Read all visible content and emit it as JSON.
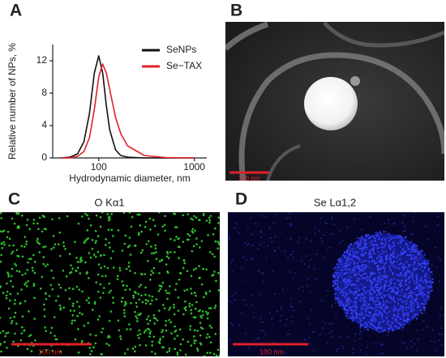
{
  "chart_data": {
    "type": "line",
    "log_x": true,
    "x_label": "Hydrodynamic diameter, nm",
    "y_label": "Relative number of NPs, %",
    "x": [
      40,
      50,
      60,
      70,
      80,
      90,
      100,
      110,
      120,
      130,
      150,
      170,
      200,
      300,
      500,
      1000
    ],
    "series": [
      {
        "name": "SeNPs",
        "color": "#111111",
        "values": [
          0,
          0.1,
          0.5,
          2,
          5.5,
          10.5,
          12.6,
          10.5,
          6.5,
          3.5,
          1,
          0.3,
          0.1,
          0,
          0,
          0
        ]
      },
      {
        "name": "Se−TAX",
        "color": "#e0202a",
        "values": [
          0,
          0,
          0.2,
          0.8,
          2.5,
          6,
          10,
          11.6,
          10.5,
          8.5,
          5,
          3,
          1.5,
          0.3,
          0.05,
          0
        ]
      }
    ],
    "xlim": [
      33,
      1350
    ],
    "xticks": [
      100,
      1000
    ],
    "ylim": [
      0,
      14
    ],
    "yticks": [
      0,
      4,
      8,
      12
    ],
    "legend": "upper right"
  },
  "panels": [
    {
      "label": "A"
    },
    {
      "label": "B",
      "scale_bar": "100 nm"
    },
    {
      "label": "C",
      "title": "O Kα1",
      "scale_bar": "100 nm"
    },
    {
      "label": "D",
      "title": "Se Lα1,2",
      "scale_bar": "100 nm"
    }
  ]
}
